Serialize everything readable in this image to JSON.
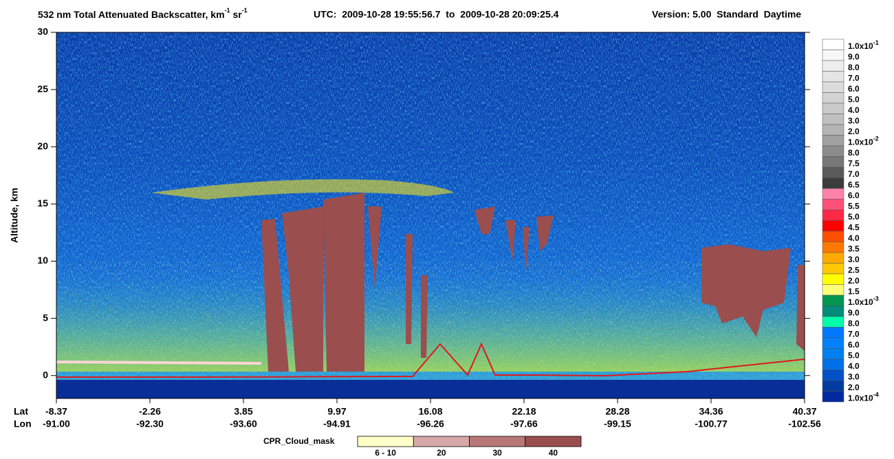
{
  "chart_data": {
    "type": "heatmap",
    "title_parts": [
      {
        "text": "532 nm Total Attenuated Backscatter, km"
      },
      {
        "sup": "-1"
      },
      {
        "text": " sr"
      },
      {
        "sup": "-1"
      }
    ],
    "time_range": "UTC:  2009-10-28 19:55:56.7  to  2009-10-28 20:09:25.4",
    "version": "Version: 5.00  Standard  Daytime",
    "y_label": "Altitude, km",
    "ylim": [
      -2,
      30
    ],
    "yticks": [
      0,
      5,
      10,
      15,
      20,
      25,
      30
    ],
    "lat_label": "Lat",
    "lon_label": "Lon",
    "lat_ticks": [
      "-8.37",
      "-2.26",
      "3.85",
      "9.97",
      "16.08",
      "22.18",
      "28.28",
      "34.36",
      "40.37"
    ],
    "lon_ticks": [
      "-91.00",
      "-92.30",
      "-93.60",
      "-94.91",
      "-96.26",
      "-97.66",
      "-99.15",
      "-100.77",
      "-102.56"
    ],
    "colorbar": [
      {
        "label": "1.0x10",
        "sup": "-1",
        "color": "#ffffff"
      },
      {
        "label": "9.0",
        "color": "#f7f7f7"
      },
      {
        "label": "8.0",
        "color": "#eeeeee"
      },
      {
        "label": "7.0",
        "color": "#e5e5e5"
      },
      {
        "label": "6.0",
        "color": "#dcdcdc"
      },
      {
        "label": "5.0",
        "color": "#d3d3d3"
      },
      {
        "label": "4.0",
        "color": "#cacaca"
      },
      {
        "label": "3.0",
        "color": "#c0c0c0"
      },
      {
        "label": "2.0",
        "color": "#b4b4b4"
      },
      {
        "label": "1.0x10",
        "sup": "-2",
        "color": "#a0a0a0"
      },
      {
        "label": "8.0",
        "color": "#8c8c8c"
      },
      {
        "label": "7.5",
        "color": "#787878"
      },
      {
        "label": "7.0",
        "color": "#5a5a5a"
      },
      {
        "label": "6.5",
        "color": "#3c3c3c"
      },
      {
        "label": "6.0",
        "color": "#ff82a8"
      },
      {
        "label": "5.5",
        "color": "#ff5078"
      },
      {
        "label": "5.0",
        "color": "#ff2846"
      },
      {
        "label": "4.5",
        "color": "#ff0000"
      },
      {
        "label": "4.0",
        "color": "#ff5000"
      },
      {
        "label": "3.5",
        "color": "#ff7800"
      },
      {
        "label": "3.0",
        "color": "#ffaa00"
      },
      {
        "label": "2.5",
        "color": "#ffc800"
      },
      {
        "label": "2.0",
        "color": "#ffff00"
      },
      {
        "label": "1.5",
        "color": "#ffff78"
      },
      {
        "label": "1.0x10",
        "sup": "-3",
        "color": "#009650"
      },
      {
        "label": "9.0",
        "color": "#008c78"
      },
      {
        "label": "8.0",
        "color": "#00ffaa"
      },
      {
        "label": "7.0",
        "color": "#0078ff"
      },
      {
        "label": "6.0",
        "color": "#0082ff"
      },
      {
        "label": "5.0",
        "color": "#0080f0"
      },
      {
        "label": "4.0",
        "color": "#0070e8"
      },
      {
        "label": "3.0",
        "color": "#0050c8"
      },
      {
        "label": "2.0",
        "color": "#003ca0"
      },
      {
        "label": "1.0x10",
        "sup": "-4",
        "color": "#0028a0"
      }
    ],
    "cpr_label": "CPR_Cloud_mask",
    "cpr_legend": [
      {
        "label": "6 - 10",
        "color": "#ffffc8"
      },
      {
        "label": "20",
        "color": "#d7a8a8"
      },
      {
        "label": "30",
        "color": "#b87878"
      },
      {
        "label": "40",
        "color": "#9a4e4e"
      }
    ]
  }
}
